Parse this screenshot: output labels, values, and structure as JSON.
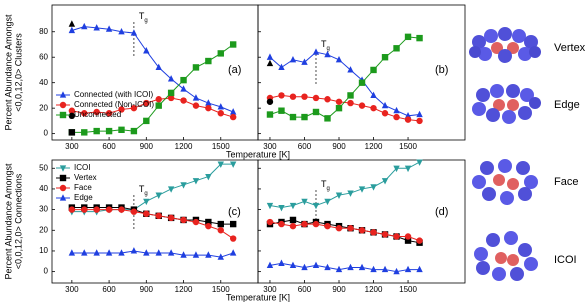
{
  "chart_data": [
    {
      "type": "line",
      "panel": "(a)",
      "ylabel": [
        "Percent Abundance Amongst",
        "<0,0,12,0> Clusters"
      ],
      "xlabel": "Temperature [K]",
      "x": [
        300,
        400,
        500,
        600,
        700,
        800,
        900,
        1000,
        1100,
        1200,
        1300,
        1400,
        1500,
        1600
      ],
      "xlim": [
        140,
        1800
      ],
      "xticks": [
        300,
        600,
        900,
        1200,
        1500
      ],
      "ylim": [
        -5,
        101
      ],
      "yticks": [
        0,
        20,
        40,
        60,
        80
      ],
      "show_ytick_labels": true,
      "tg": 800,
      "tg_label": "T",
      "tg_subscript": "g",
      "legend": "lower-left",
      "series": [
        {
          "name": "Connected (with ICOI)",
          "color": "#1f3fe0",
          "marker": "triangle-up",
          "values": [
            81,
            84,
            83,
            82,
            80,
            79,
            65,
            52,
            43,
            35,
            28,
            24,
            21,
            17
          ]
        },
        {
          "name": "Connected (Non-ICOI)",
          "color": "#e8231f",
          "marker": "circle",
          "values": [
            18,
            16,
            17,
            16,
            19,
            20,
            24,
            27,
            28,
            26,
            22,
            20,
            16,
            13
          ]
        },
        {
          "name": "Unconnected",
          "color": "#1c9a1c",
          "marker": "square",
          "values": [
            1,
            1,
            2,
            2,
            3,
            2,
            10,
            22,
            32,
            42,
            52,
            57,
            63,
            70
          ]
        },
        {
          "color": "#000000",
          "marker": "triangle-up",
          "x": [
            300
          ],
          "values": [
            86
          ]
        },
        {
          "color": "#000000",
          "marker": "circle",
          "x": [
            300
          ],
          "values": [
            14
          ]
        },
        {
          "color": "#000000",
          "marker": "square",
          "x": [
            300
          ],
          "values": [
            1
          ]
        }
      ]
    },
    {
      "type": "line",
      "panel": "(b)",
      "x": [
        300,
        400,
        500,
        600,
        700,
        800,
        900,
        1000,
        1100,
        1200,
        1300,
        1400,
        1500,
        1600
      ],
      "xlim": [
        196,
        1995
      ],
      "xticks": [
        300,
        600,
        900,
        1200,
        1500
      ],
      "ylim": [
        -5,
        101
      ],
      "yticks": [
        0,
        20,
        40,
        60,
        80
      ],
      "show_ytick_labels": false,
      "tg": 700,
      "tg_label": "T",
      "tg_subscript": "g",
      "series": [
        {
          "color": "#1f3fe0",
          "marker": "triangle-up",
          "values": [
            60,
            52,
            58,
            56,
            64,
            62,
            58,
            50,
            42,
            30,
            22,
            18,
            14,
            15
          ]
        },
        {
          "color": "#e8231f",
          "marker": "circle",
          "values": [
            28,
            30,
            29,
            29,
            28,
            27,
            25,
            24,
            22,
            20,
            16,
            13,
            11,
            10
          ]
        },
        {
          "color": "#1c9a1c",
          "marker": "square",
          "values": [
            15,
            18,
            13,
            13,
            17,
            12,
            20,
            30,
            40,
            50,
            60,
            67,
            76,
            75
          ]
        },
        {
          "color": "#000000",
          "marker": "triangle-up",
          "x": [
            300
          ],
          "values": [
            55
          ]
        },
        {
          "color": "#000000",
          "marker": "circle",
          "x": [
            300
          ],
          "values": [
            25
          ]
        }
      ]
    },
    {
      "type": "line",
      "panel": "(c)",
      "ylabel": [
        "Percent Abundance Amongst",
        "<0,0,12,0> Connections"
      ],
      "xlabel": "Temperature [K]",
      "x": [
        300,
        400,
        500,
        600,
        700,
        800,
        900,
        1000,
        1100,
        1200,
        1300,
        1400,
        1500,
        1600
      ],
      "xlim": [
        140,
        1800
      ],
      "xticks": [
        300,
        600,
        900,
        1200,
        1500
      ],
      "ylim": [
        -5.5,
        54
      ],
      "yticks": [
        0,
        10,
        20,
        30,
        40,
        50
      ],
      "show_ytick_labels": true,
      "tg": 800,
      "tg_label": "T",
      "tg_subscript": "g",
      "legend": "upper-left",
      "series": [
        {
          "name": "ICOI",
          "color": "#2a9d9d",
          "marker": "triangle-down",
          "values": [
            29,
            29,
            29,
            30,
            30,
            30,
            34,
            37,
            40,
            42,
            44,
            46,
            52,
            52
          ]
        },
        {
          "name": "Vertex",
          "color": "#000000",
          "marker": "square",
          "values": [
            31,
            31,
            31,
            31,
            31,
            30,
            28,
            27,
            26,
            25,
            25,
            24,
            23,
            23
          ]
        },
        {
          "name": "Face",
          "color": "#e8231f",
          "marker": "circle",
          "values": [
            30,
            30,
            30,
            30,
            30,
            29,
            28,
            27,
            26,
            25,
            24,
            22,
            20,
            16
          ]
        },
        {
          "name": "Edge",
          "color": "#1f3fe0",
          "marker": "triangle-up",
          "values": [
            9,
            9,
            9,
            9,
            9,
            10,
            9,
            9,
            9,
            8,
            8,
            8,
            7,
            9
          ]
        }
      ]
    },
    {
      "type": "line",
      "panel": "(d)",
      "x": [
        300,
        400,
        500,
        600,
        700,
        800,
        900,
        1000,
        1100,
        1200,
        1300,
        1400,
        1500,
        1600
      ],
      "xlim": [
        196,
        1995
      ],
      "xticks": [
        300,
        600,
        900,
        1200,
        1500
      ],
      "ylim": [
        -5.5,
        54
      ],
      "yticks": [
        0,
        10,
        20,
        30,
        40,
        50
      ],
      "show_ytick_labels": false,
      "tg": 700,
      "tg_label": "T",
      "tg_subscript": "g",
      "series": [
        {
          "color": "#2a9d9d",
          "marker": "triangle-down",
          "values": [
            32,
            31,
            32,
            34,
            32,
            34,
            37,
            38,
            40,
            41,
            44,
            50,
            50,
            53
          ]
        },
        {
          "color": "#000000",
          "marker": "square",
          "values": [
            23,
            24,
            25,
            23,
            24,
            23,
            22,
            21,
            20,
            19,
            18,
            17,
            15,
            14
          ]
        },
        {
          "color": "#e8231f",
          "marker": "circle",
          "values": [
            24,
            23,
            22,
            23,
            23,
            22,
            21,
            21,
            20,
            19,
            18,
            17,
            17,
            15
          ]
        },
        {
          "color": "#1f3fe0",
          "marker": "triangle-up",
          "values": [
            3,
            4,
            3,
            2,
            3,
            2,
            1,
            2,
            2,
            1,
            1,
            0,
            1,
            1
          ]
        }
      ]
    }
  ],
  "cluster_labels": [
    "Vertex",
    "Edge",
    "Face",
    "ICOI"
  ]
}
